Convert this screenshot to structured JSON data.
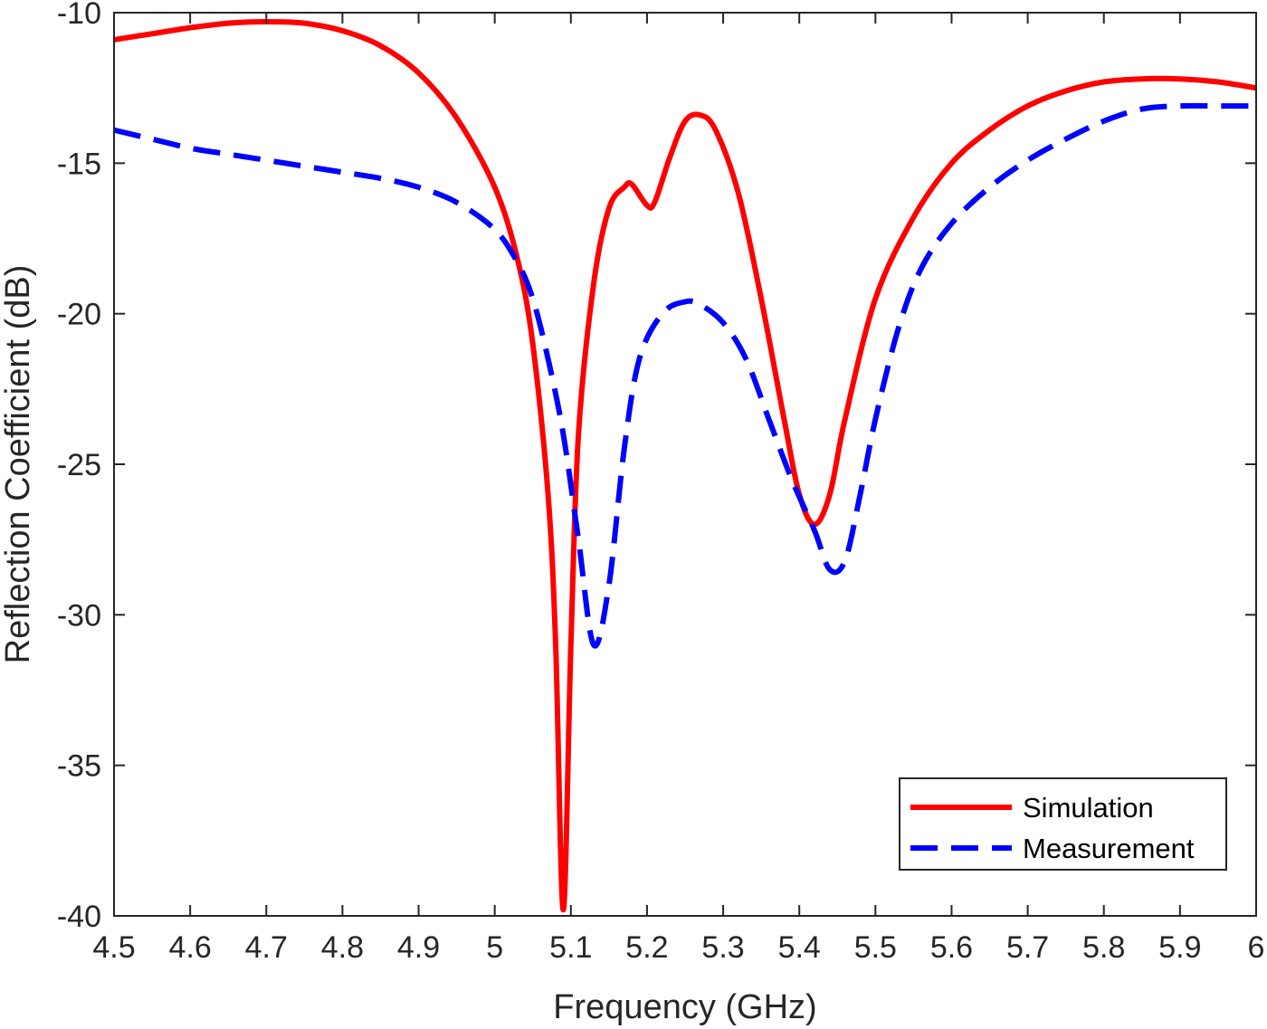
{
  "chart_data": {
    "type": "line",
    "title": "",
    "xlabel": "Frequency (GHz)",
    "ylabel": "Reflection Coefficient (dB)",
    "xlim": [
      4.5,
      6
    ],
    "ylim": [
      -40,
      -10
    ],
    "xticks": [
      4.5,
      4.6,
      4.7,
      4.8,
      4.9,
      5,
      5.1,
      5.2,
      5.3,
      5.4,
      5.5,
      5.6,
      5.7,
      5.8,
      5.9,
      6
    ],
    "xtick_labels": [
      "4.5",
      "4.6",
      "4.7",
      "4.8",
      "4.9",
      "5",
      "5.1",
      "5.2",
      "5.3",
      "5.4",
      "5.5",
      "5.6",
      "5.7",
      "5.8",
      "5.9",
      "6"
    ],
    "yticks": [
      -10,
      -15,
      -20,
      -25,
      -30,
      -35,
      -40
    ],
    "ytick_labels": [
      "-10",
      "-15",
      "-20",
      "-25",
      "-30",
      "-35",
      "-40"
    ],
    "grid": false,
    "legend_position": "bottom-right",
    "series": [
      {
        "name": "Simulation",
        "color": "#ff0000",
        "line_style": "solid",
        "points": [
          [
            4.5,
            -10.9
          ],
          [
            4.55,
            -10.7
          ],
          [
            4.6,
            -10.5
          ],
          [
            4.65,
            -10.35
          ],
          [
            4.7,
            -10.3
          ],
          [
            4.75,
            -10.35
          ],
          [
            4.8,
            -10.6
          ],
          [
            4.85,
            -11.1
          ],
          [
            4.9,
            -12.0
          ],
          [
            4.95,
            -13.5
          ],
          [
            5.0,
            -15.8
          ],
          [
            5.03,
            -18.2
          ],
          [
            5.05,
            -21.0
          ],
          [
            5.07,
            -26.0
          ],
          [
            5.08,
            -31.0
          ],
          [
            5.09,
            -39.8
          ],
          [
            5.1,
            -31.0
          ],
          [
            5.11,
            -24.0
          ],
          [
            5.13,
            -19.0
          ],
          [
            5.15,
            -16.5
          ],
          [
            5.17,
            -15.8
          ],
          [
            5.18,
            -15.7
          ],
          [
            5.2,
            -16.4
          ],
          [
            5.21,
            -16.3
          ],
          [
            5.23,
            -14.8
          ],
          [
            5.25,
            -13.6
          ],
          [
            5.27,
            -13.4
          ],
          [
            5.29,
            -13.9
          ],
          [
            5.32,
            -16.0
          ],
          [
            5.35,
            -19.5
          ],
          [
            5.38,
            -23.5
          ],
          [
            5.4,
            -26.0
          ],
          [
            5.42,
            -27.0
          ],
          [
            5.44,
            -26.0
          ],
          [
            5.46,
            -23.5
          ],
          [
            5.5,
            -19.5
          ],
          [
            5.55,
            -16.8
          ],
          [
            5.6,
            -15.0
          ],
          [
            5.65,
            -13.9
          ],
          [
            5.7,
            -13.1
          ],
          [
            5.75,
            -12.6
          ],
          [
            5.8,
            -12.3
          ],
          [
            5.85,
            -12.2
          ],
          [
            5.9,
            -12.2
          ],
          [
            5.95,
            -12.3
          ],
          [
            6.0,
            -12.5
          ]
        ]
      },
      {
        "name": "Measurement",
        "color": "#0000ff",
        "line_style": "dashed",
        "points": [
          [
            4.5,
            -13.9
          ],
          [
            4.55,
            -14.2
          ],
          [
            4.6,
            -14.5
          ],
          [
            4.65,
            -14.7
          ],
          [
            4.7,
            -14.9
          ],
          [
            4.75,
            -15.1
          ],
          [
            4.8,
            -15.3
          ],
          [
            4.85,
            -15.5
          ],
          [
            4.9,
            -15.8
          ],
          [
            4.95,
            -16.3
          ],
          [
            5.0,
            -17.2
          ],
          [
            5.03,
            -18.3
          ],
          [
            5.05,
            -19.5
          ],
          [
            5.07,
            -21.5
          ],
          [
            5.09,
            -24.0
          ],
          [
            5.11,
            -27.5
          ],
          [
            5.13,
            -31.0
          ],
          [
            5.15,
            -29.0
          ],
          [
            5.17,
            -24.5
          ],
          [
            5.19,
            -21.5
          ],
          [
            5.22,
            -20.0
          ],
          [
            5.25,
            -19.6
          ],
          [
            5.27,
            -19.7
          ],
          [
            5.3,
            -20.3
          ],
          [
            5.33,
            -21.5
          ],
          [
            5.36,
            -23.5
          ],
          [
            5.39,
            -25.5
          ],
          [
            5.42,
            -27.2
          ],
          [
            5.44,
            -28.5
          ],
          [
            5.46,
            -28.2
          ],
          [
            5.48,
            -26.0
          ],
          [
            5.5,
            -23.5
          ],
          [
            5.53,
            -20.5
          ],
          [
            5.56,
            -18.5
          ],
          [
            5.6,
            -17.0
          ],
          [
            5.65,
            -15.8
          ],
          [
            5.7,
            -14.9
          ],
          [
            5.75,
            -14.2
          ],
          [
            5.8,
            -13.6
          ],
          [
            5.85,
            -13.2
          ],
          [
            5.9,
            -13.1
          ],
          [
            5.95,
            -13.1
          ],
          [
            6.0,
            -13.1
          ]
        ]
      }
    ]
  }
}
